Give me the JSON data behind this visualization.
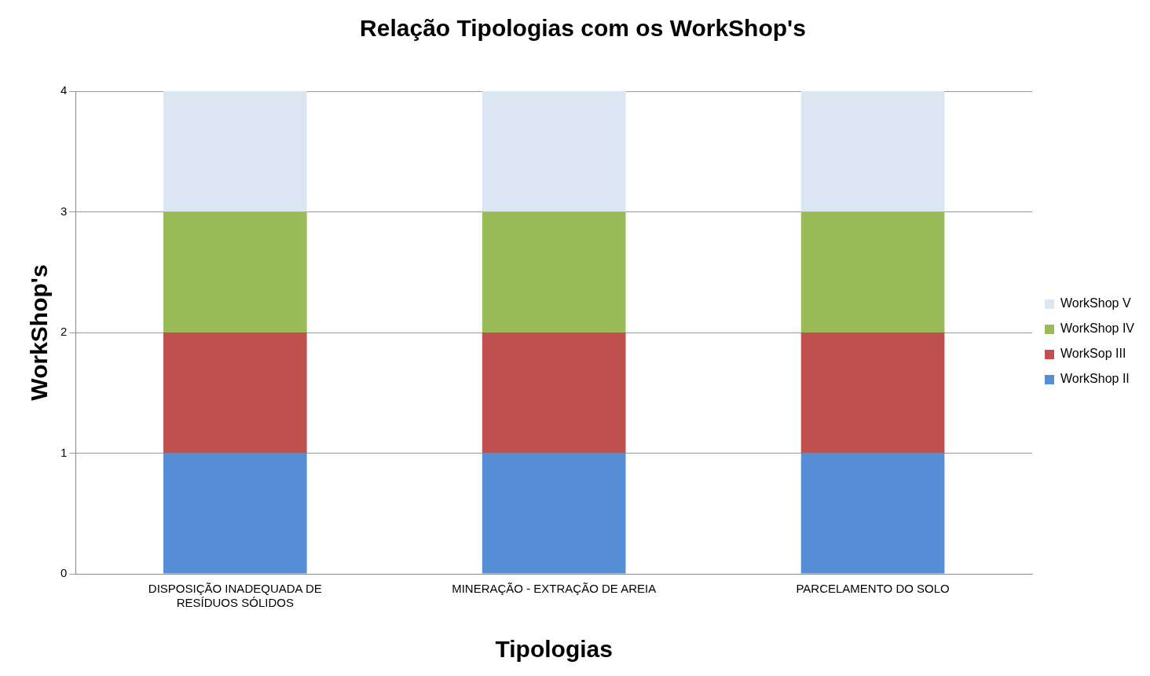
{
  "chart_data": {
    "type": "bar",
    "title": "Relação Tipologias com os WorkShop's",
    "xlabel": "Tipologias",
    "ylabel": "WorkShop's",
    "categories": [
      "DISPOSIÇÃO INADEQUADA DE RESÍDUOS SÓLIDOS",
      "MINERAÇÃO - EXTRAÇÃO DE AREIA",
      "PARCELAMENTO DO SOLO"
    ],
    "series": [
      {
        "name": "WorkShop II",
        "color": "#558ed5",
        "values": [
          1,
          1,
          1
        ]
      },
      {
        "name": "WorkSop III",
        "color": "#c0504d",
        "values": [
          1,
          1,
          1
        ]
      },
      {
        "name": "WorkShop IV",
        "color": "#9bbb59",
        "values": [
          1,
          1,
          1
        ]
      },
      {
        "name": "WorkShop V",
        "color": "#dce6f2",
        "values": [
          1,
          1,
          1
        ]
      }
    ],
    "stacked": true,
    "ylim": [
      0,
      4
    ],
    "yticks": [
      0,
      1,
      2,
      3,
      4
    ],
    "grid": "y",
    "legend": "right"
  }
}
